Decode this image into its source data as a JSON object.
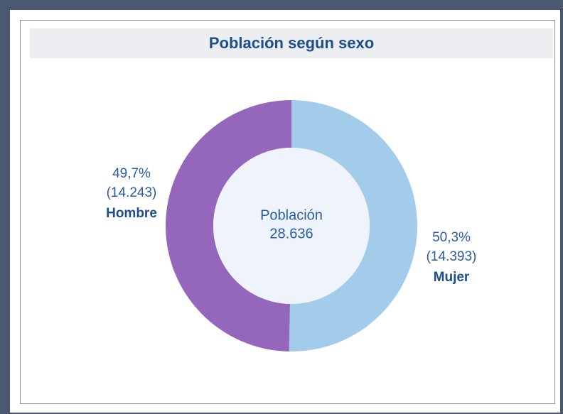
{
  "chart_data": {
    "type": "pie",
    "title": "Población según sexo",
    "categories": [
      "Mujer",
      "Hombre"
    ],
    "values": [
      50.3,
      49.7
    ],
    "value_labels": [
      "50,3%",
      "49,7%"
    ],
    "counts": [
      14393,
      14243
    ],
    "count_labels": [
      "(14.393)",
      "(14.243)"
    ],
    "colors": [
      "#a3cbea",
      "#9467bd"
    ],
    "center_label": "Población",
    "center_value": 28636,
    "center_value_label": "28.636",
    "donut": true
  }
}
